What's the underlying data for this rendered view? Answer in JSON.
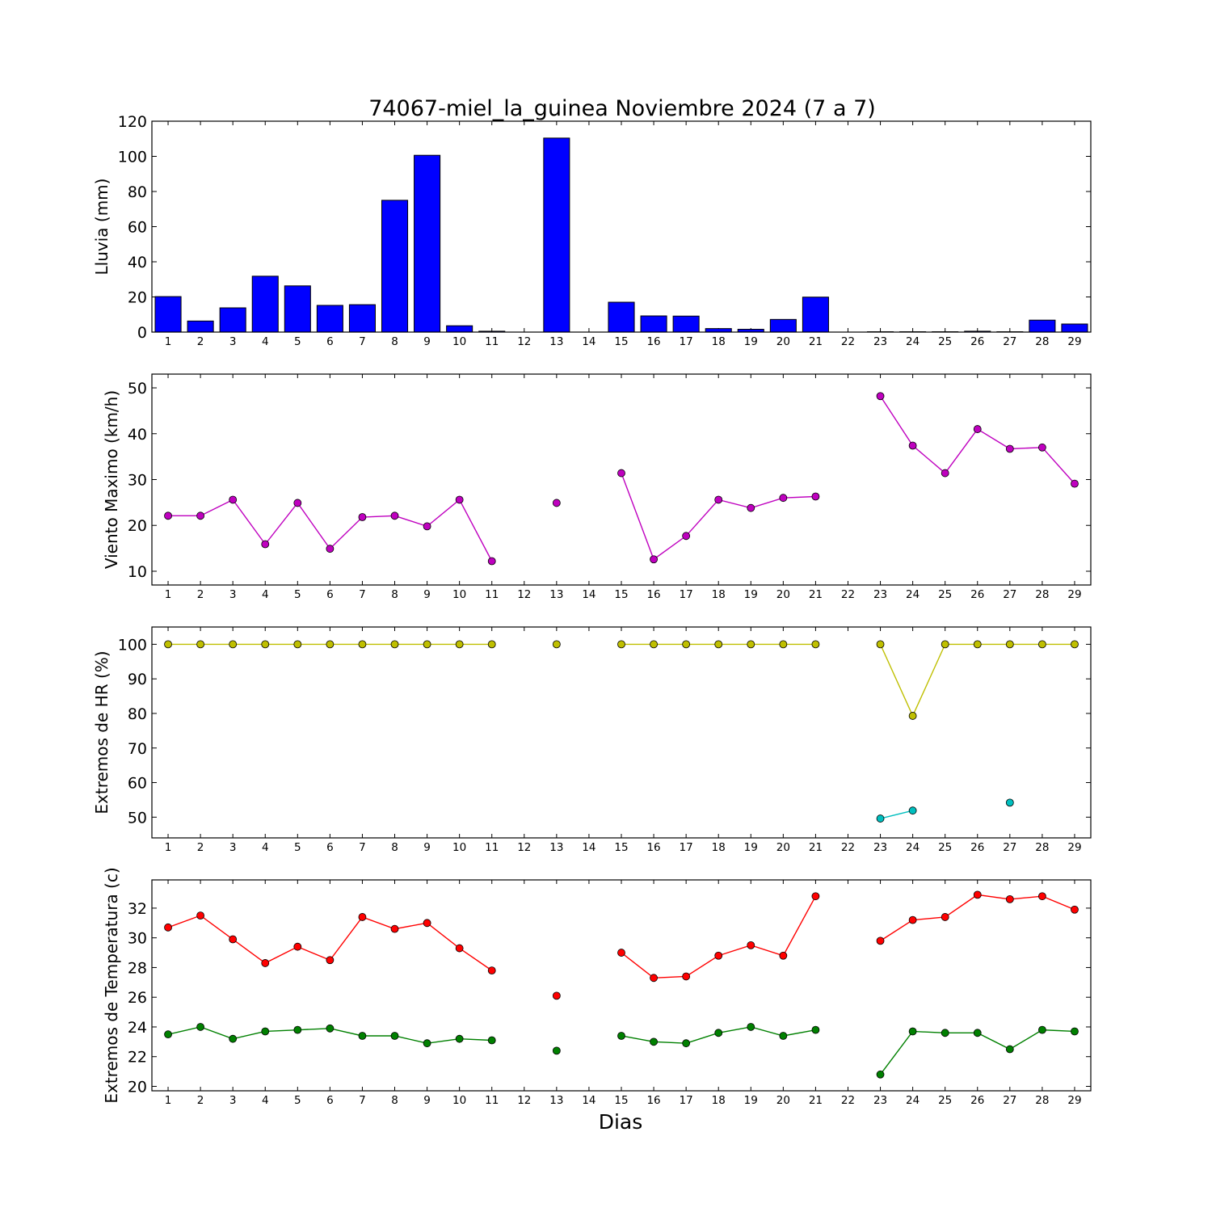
{
  "title": "74067-miel_la_guinea Noviembre 2024  (7 a 7)",
  "xlabel": "Dias",
  "days": [
    1,
    2,
    3,
    4,
    5,
    6,
    7,
    8,
    9,
    10,
    11,
    12,
    13,
    14,
    15,
    16,
    17,
    18,
    19,
    20,
    21,
    22,
    23,
    24,
    25,
    26,
    27,
    28,
    29
  ],
  "chart_data": [
    {
      "type": "bar",
      "ylabel": "Lluvia (mm)",
      "ylim": [
        0,
        120
      ],
      "yticks": [
        0,
        20,
        40,
        60,
        80,
        100,
        120
      ],
      "color": "#0000ff",
      "x": [
        1,
        2,
        3,
        4,
        5,
        6,
        7,
        8,
        9,
        10,
        11,
        12,
        13,
        14,
        15,
        16,
        17,
        18,
        19,
        20,
        21,
        22,
        23,
        24,
        25,
        26,
        27,
        28,
        29
      ],
      "values": [
        20.2,
        6.3,
        13.8,
        31.8,
        26.3,
        15.2,
        15.6,
        75.0,
        100.6,
        3.6,
        0.5,
        0,
        110.4,
        0,
        17.0,
        9.2,
        9.1,
        2.0,
        1.6,
        7.2,
        19.9,
        0,
        0.2,
        0.2,
        0.2,
        0.5,
        0.2,
        6.8,
        4.6
      ]
    },
    {
      "type": "line",
      "ylabel": "Viento Maximo (km/h)",
      "ylim": [
        7,
        53
      ],
      "yticks": [
        10,
        20,
        30,
        40,
        50
      ],
      "series": [
        {
          "color": "#bf00bf",
          "x": [
            1,
            2,
            3,
            4,
            5,
            6,
            7,
            8,
            9,
            10,
            11,
            12,
            13,
            14,
            15,
            16,
            17,
            18,
            19,
            20,
            21,
            22,
            23,
            24,
            25,
            26,
            27,
            28,
            29
          ],
          "values": [
            22.1,
            22.1,
            25.6,
            15.9,
            24.9,
            14.9,
            21.8,
            22.1,
            19.8,
            25.6,
            12.2,
            null,
            24.9,
            null,
            31.4,
            12.6,
            17.7,
            25.6,
            23.8,
            26.0,
            26.3,
            null,
            48.2,
            37.4,
            31.4,
            41.0,
            36.7,
            37.0,
            29.1
          ]
        }
      ]
    },
    {
      "type": "line",
      "ylabel": "Extremos de HR (%)",
      "ylim": [
        44,
        105
      ],
      "yticks": [
        50,
        60,
        70,
        80,
        90,
        100
      ],
      "series": [
        {
          "color": "#bfbf00",
          "x": [
            1,
            2,
            3,
            4,
            5,
            6,
            7,
            8,
            9,
            10,
            11,
            12,
            13,
            14,
            15,
            16,
            17,
            18,
            19,
            20,
            21,
            22,
            23,
            24,
            25,
            26,
            27,
            28,
            29
          ],
          "values": [
            100,
            100,
            100,
            100,
            100,
            100,
            100,
            100,
            100,
            100,
            100,
            null,
            100,
            null,
            100,
            100,
            100,
            100,
            100,
            100,
            100,
            null,
            100,
            79.3,
            100,
            100,
            100,
            100,
            100
          ]
        },
        {
          "color": "#00bfbf",
          "x": [
            1,
            2,
            3,
            4,
            5,
            6,
            7,
            8,
            9,
            10,
            11,
            12,
            13,
            14,
            15,
            16,
            17,
            18,
            19,
            20,
            21,
            22,
            23,
            24,
            25,
            26,
            27,
            28,
            29
          ],
          "values": [
            null,
            null,
            null,
            null,
            null,
            null,
            null,
            null,
            null,
            null,
            null,
            null,
            null,
            null,
            null,
            null,
            null,
            null,
            null,
            null,
            null,
            null,
            49.6,
            51.9,
            null,
            null,
            54.2,
            null,
            null
          ]
        }
      ]
    },
    {
      "type": "line",
      "ylabel": "Extremos de Temperatura (c)",
      "ylim": [
        19.7,
        33.9
      ],
      "yticks": [
        20,
        22,
        24,
        26,
        28,
        30,
        32
      ],
      "series": [
        {
          "color": "#ff0000",
          "x": [
            1,
            2,
            3,
            4,
            5,
            6,
            7,
            8,
            9,
            10,
            11,
            12,
            13,
            14,
            15,
            16,
            17,
            18,
            19,
            20,
            21,
            22,
            23,
            24,
            25,
            26,
            27,
            28,
            29
          ],
          "values": [
            30.7,
            31.5,
            29.9,
            28.3,
            29.4,
            28.5,
            31.4,
            30.6,
            31.0,
            29.3,
            27.8,
            null,
            26.1,
            null,
            29.0,
            27.3,
            27.4,
            28.8,
            29.5,
            28.8,
            32.8,
            null,
            29.8,
            31.2,
            31.4,
            32.9,
            32.6,
            32.8,
            31.9
          ]
        },
        {
          "color": "#008000",
          "x": [
            1,
            2,
            3,
            4,
            5,
            6,
            7,
            8,
            9,
            10,
            11,
            12,
            13,
            14,
            15,
            16,
            17,
            18,
            19,
            20,
            21,
            22,
            23,
            24,
            25,
            26,
            27,
            28,
            29
          ],
          "values": [
            23.5,
            24.0,
            23.2,
            23.7,
            23.8,
            23.9,
            23.4,
            23.4,
            22.9,
            23.2,
            23.1,
            null,
            22.4,
            null,
            23.4,
            23.0,
            22.9,
            23.6,
            24.0,
            23.4,
            23.8,
            null,
            20.8,
            23.7,
            23.6,
            23.6,
            22.5,
            23.8,
            23.7
          ]
        }
      ]
    }
  ]
}
